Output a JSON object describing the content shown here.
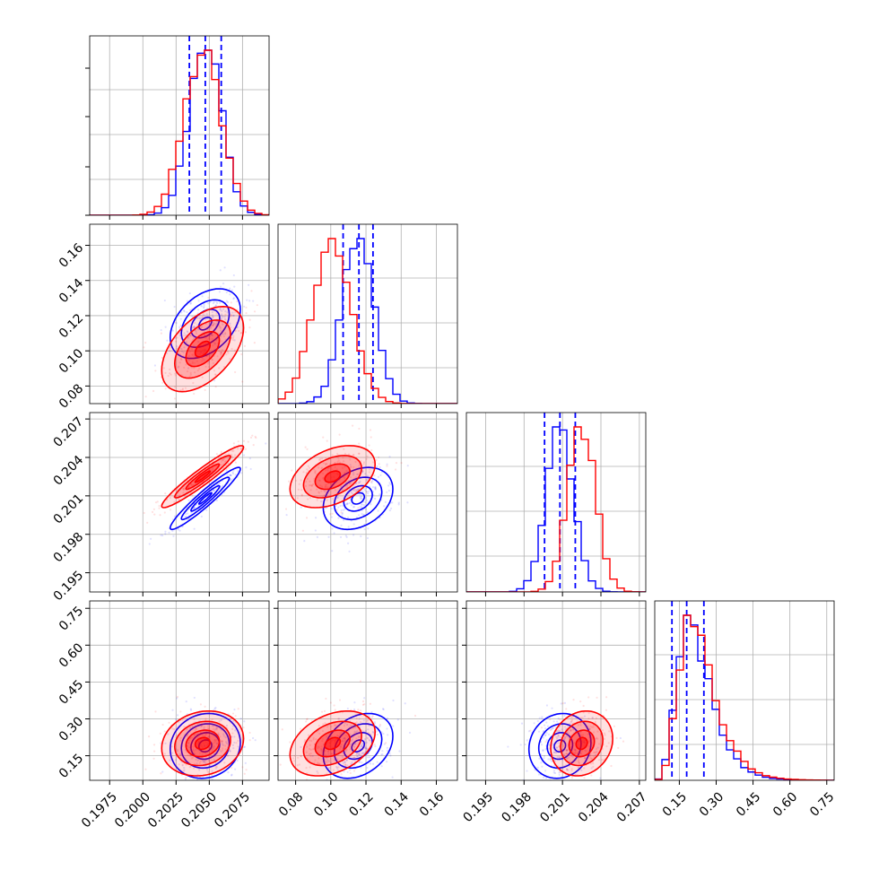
{
  "colors": {
    "series_a": "#0000ff",
    "series_b": "#ff0000",
    "grid": "#b0b0b0",
    "frame": "#000000"
  },
  "chart_data": {
    "type": "corner",
    "grid": true,
    "title": "",
    "n_params": 4,
    "axes": [
      {
        "range": [
          0.196,
          0.2095
        ],
        "ticks": [
          0.1975,
          0.2,
          0.2025,
          0.205,
          0.2075
        ],
        "tick_labels": [
          "0.1975",
          "0.2000",
          "0.2025",
          "0.2050",
          "0.2075"
        ]
      },
      {
        "range": [
          0.07,
          0.172
        ],
        "ticks": [
          0.08,
          0.1,
          0.12,
          0.14,
          0.16
        ],
        "tick_labels": [
          "0.08",
          "0.10",
          "0.12",
          "0.14",
          "0.16"
        ]
      },
      {
        "range": [
          0.1935,
          0.2075
        ],
        "ticks": [
          0.195,
          0.198,
          0.201,
          0.204,
          0.207
        ],
        "tick_labels": [
          "0.195",
          "0.198",
          "0.201",
          "0.204",
          "0.207"
        ]
      },
      {
        "range": [
          0.05,
          0.78
        ],
        "ticks": [
          0.15,
          0.3,
          0.45,
          0.6,
          0.75
        ],
        "tick_labels": [
          "0.15",
          "0.30",
          "0.45",
          "0.60",
          "0.75"
        ]
      }
    ],
    "series": [
      {
        "color": "#0000ff",
        "mean": [
          0.2047,
          0.1155,
          0.2008,
          0.19
        ],
        "sigma": [
          0.0012,
          0.009,
          0.0011,
          0.06
        ],
        "corr": [
          [
            1,
            0.4,
            0.95,
            0.1
          ],
          [
            0.4,
            1,
            0.3,
            0.3
          ],
          [
            0.95,
            0.3,
            1,
            0.1
          ],
          [
            0.1,
            0.3,
            0.1,
            1
          ]
        ],
        "quantiles": [
          [
            0.2035,
            0.2047,
            0.2059
          ],
          [
            0.107,
            0.116,
            0.124
          ],
          [
            0.1996,
            0.2008,
            0.202
          ],
          [
            0.12,
            0.18,
            0.25
          ]
        ]
      },
      {
        "color": "#ff0000",
        "mean": [
          0.2045,
          0.101,
          0.2025,
          0.2
        ],
        "sigma": [
          0.0014,
          0.011,
          0.0011,
          0.06
        ],
        "corr": [
          [
            1,
            0.5,
            0.95,
            0.15
          ],
          [
            0.5,
            1,
            0.4,
            0.35
          ],
          [
            0.95,
            0.4,
            1,
            0.15
          ],
          [
            0.15,
            0.35,
            0.15,
            1
          ]
        ],
        "quantiles": []
      }
    ]
  }
}
